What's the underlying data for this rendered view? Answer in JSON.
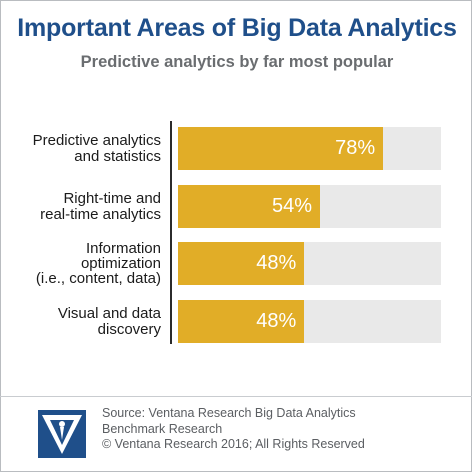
{
  "title": "Important Areas of Big Data Analytics",
  "subtitle": "Predictive analytics by far most popular",
  "chart_data": {
    "type": "bar",
    "orientation": "horizontal",
    "title": "Important Areas of Big Data Analytics",
    "subtitle": "Predictive analytics by far most popular",
    "categories": [
      "Predictive analytics\nand statistics",
      "Right-time and\nreal-time analytics",
      "Information\noptimization\n(i.e., content, data)",
      "Visual and data\ndiscovery"
    ],
    "values": [
      78,
      54,
      48,
      48
    ],
    "value_labels": [
      "78%",
      "54%",
      "48%",
      "48%"
    ],
    "xlim": [
      0,
      100
    ],
    "xlabel": "",
    "ylabel": "",
    "grid": false,
    "legend": "none",
    "colors": {
      "bar": "#e1ad27",
      "track": "#e9e9e9"
    }
  },
  "footer": {
    "source_line1": "Source: Ventana Research Big Data Analytics",
    "source_line2": "Benchmark Research",
    "source_line3": "© Ventana Research 2016; All Rights Reserved"
  },
  "colors": {
    "title": "#1f4f8a",
    "subtitle": "#6a6d70",
    "logo": "#1f4f8a"
  },
  "icons": {
    "logo": "ventana-logo-icon"
  }
}
